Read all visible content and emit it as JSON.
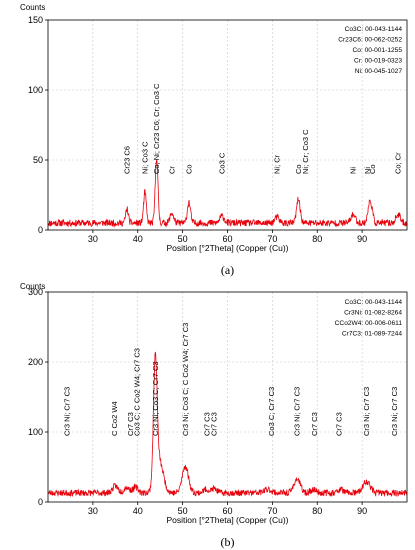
{
  "chart_data": [
    {
      "type": "line",
      "panel_label": "(a)",
      "ylabel": "Counts",
      "xlabel": "Position [°2Theta] (Copper (Cu))",
      "xlim": [
        20,
        100
      ],
      "ylim": [
        0,
        150
      ],
      "xticks": [
        30,
        40,
        50,
        60,
        70,
        80,
        90
      ],
      "yticks": [
        0,
        50,
        100,
        150
      ],
      "grid": true,
      "line_color": "#e8000b",
      "baseline": 5,
      "noise": 2.4,
      "seed": 11,
      "peaks": [
        {
          "x": 37.6,
          "y": 10,
          "w": 0.3
        },
        {
          "x": 41.6,
          "y": 22,
          "w": 0.3
        },
        {
          "x": 44.2,
          "y": 47,
          "w": 0.3
        },
        {
          "x": 47.6,
          "y": 7,
          "w": 0.4
        },
        {
          "x": 51.4,
          "y": 15,
          "w": 0.35
        },
        {
          "x": 58.8,
          "y": 5,
          "w": 0.5
        },
        {
          "x": 71.0,
          "y": 4,
          "w": 0.5
        },
        {
          "x": 75.8,
          "y": 17,
          "w": 0.4
        },
        {
          "x": 88.0,
          "y": 6,
          "w": 0.5
        },
        {
          "x": 91.8,
          "y": 16,
          "w": 0.45
        },
        {
          "x": 98.0,
          "y": 6,
          "w": 0.5
        }
      ],
      "annotations": [
        {
          "x": 37.6,
          "text": "Cr23 C6"
        },
        {
          "x": 41.6,
          "text": "Ni; Co3 C"
        },
        {
          "x": 44.2,
          "text": "Co; Ni; Cr23 C6; Cr; Co3 C"
        },
        {
          "x": 47.6,
          "text": "Cr"
        },
        {
          "x": 51.4,
          "text": "Co"
        },
        {
          "x": 58.8,
          "text": "Co3 C"
        },
        {
          "x": 71.0,
          "text": "Ni; Cr"
        },
        {
          "x": 75.8,
          "text": "Co"
        },
        {
          "x": 77.4,
          "text": "Ni; Cr; Co3 C"
        },
        {
          "x": 88.0,
          "text": "Ni"
        },
        {
          "x": 91.2,
          "text": "Ni"
        },
        {
          "x": 92.3,
          "text": "Co"
        },
        {
          "x": 98.0,
          "text": "Co; Cr"
        }
      ],
      "legend": [
        "Co3C: 00-043-1144",
        "Cr23C6: 00-062-0252",
        "Co: 00-001-1255",
        "Cr: 00-019-0323",
        "Ni: 00-045-1027"
      ]
    },
    {
      "type": "line",
      "panel_label": "(b)",
      "ylabel": "Counts",
      "xlabel": "Position [°2Theta] (Copper (Cu))",
      "xlim": [
        20,
        100
      ],
      "ylim": [
        0,
        300
      ],
      "xticks": [
        30,
        40,
        50,
        60,
        70,
        80,
        90
      ],
      "yticks": [
        0,
        100,
        200,
        300
      ],
      "grid": true,
      "line_color": "#e8000b",
      "baseline": 13,
      "noise": 4.5,
      "seed": 23,
      "peaks": [
        {
          "x": 35.0,
          "y": 10,
          "w": 0.6
        },
        {
          "x": 37.5,
          "y": 8,
          "w": 0.6
        },
        {
          "x": 39.5,
          "y": 8,
          "w": 0.6
        },
        {
          "x": 43.9,
          "y": 172,
          "w": 0.4
        },
        {
          "x": 44.8,
          "y": 45,
          "w": 0.9
        },
        {
          "x": 50.6,
          "y": 38,
          "w": 0.7
        },
        {
          "x": 55.2,
          "y": 5,
          "w": 0.6
        },
        {
          "x": 57.0,
          "y": 6,
          "w": 0.6
        },
        {
          "x": 69.0,
          "y": 5,
          "w": 0.8
        },
        {
          "x": 75.5,
          "y": 20,
          "w": 0.7
        },
        {
          "x": 79.2,
          "y": 5,
          "w": 0.6
        },
        {
          "x": 85.2,
          "y": 5,
          "w": 0.6
        },
        {
          "x": 91.0,
          "y": 16,
          "w": 0.8
        }
      ],
      "annotations": [
        {
          "x": 24.2,
          "text": "Cr3 Ni; Cr7 C3"
        },
        {
          "x": 34.8,
          "text": "C Co2 W4"
        },
        {
          "x": 38.4,
          "text": "Cr7 C3"
        },
        {
          "x": 39.8,
          "text": "Co3 C; C Co2 W4; Cr7 C3"
        },
        {
          "x": 43.9,
          "text": "Cr3 Ni; Co3 C; Cr7 C3"
        },
        {
          "x": 50.6,
          "text": "Cr3 Ni; Co3 C; C Co2 W4; Cr7 C3"
        },
        {
          "x": 55.4,
          "text": "Cr7 C3"
        },
        {
          "x": 57.0,
          "text": "Cr7 C3"
        },
        {
          "x": 69.8,
          "text": "Co3 C; Cr7 C3"
        },
        {
          "x": 75.5,
          "text": "Cr3 Ni; Cr7 C3"
        },
        {
          "x": 79.4,
          "text": "Cr7 C3"
        },
        {
          "x": 84.8,
          "text": "Cr7 C3"
        },
        {
          "x": 91.0,
          "text": "Cr3 Ni; Cr7 C3"
        },
        {
          "x": 97.2,
          "text": "Cr3 Ni; Cr7 C3"
        }
      ],
      "legend": [
        "Co3C: 00-043-1144",
        "Cr3Ni: 01-082-8264",
        "CCo2W4: 00-006-0611",
        "Cr7C3: 01-089-7244"
      ]
    }
  ]
}
